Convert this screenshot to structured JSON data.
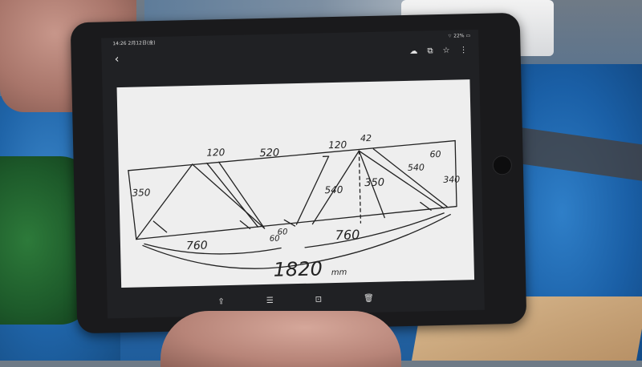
{
  "status_bar": {
    "time": "14:26 2月12日(金)",
    "battery": "22%"
  },
  "drawing": {
    "dims": {
      "top_left_120": "120",
      "top_520": "520",
      "top_right_120": "120",
      "peak_42": "42",
      "right_60": "60",
      "right_540": "540",
      "right_340": "340",
      "left_350": "350",
      "mid_540": "540",
      "mid_350": "350",
      "bottom_60": "60",
      "bottom_60b": "60",
      "bottom_760a": "760",
      "bottom_760b": "760",
      "total": "1820",
      "total_unit": "mm"
    }
  },
  "icons": {
    "back": "chevron-left-icon",
    "cloud": "cloud-icon",
    "cast": "cast-icon",
    "star": "star-icon",
    "more": "more-vert-icon",
    "share": "share-icon",
    "adjust": "tune-icon",
    "lens": "lens-icon",
    "delete": "delete-icon"
  }
}
